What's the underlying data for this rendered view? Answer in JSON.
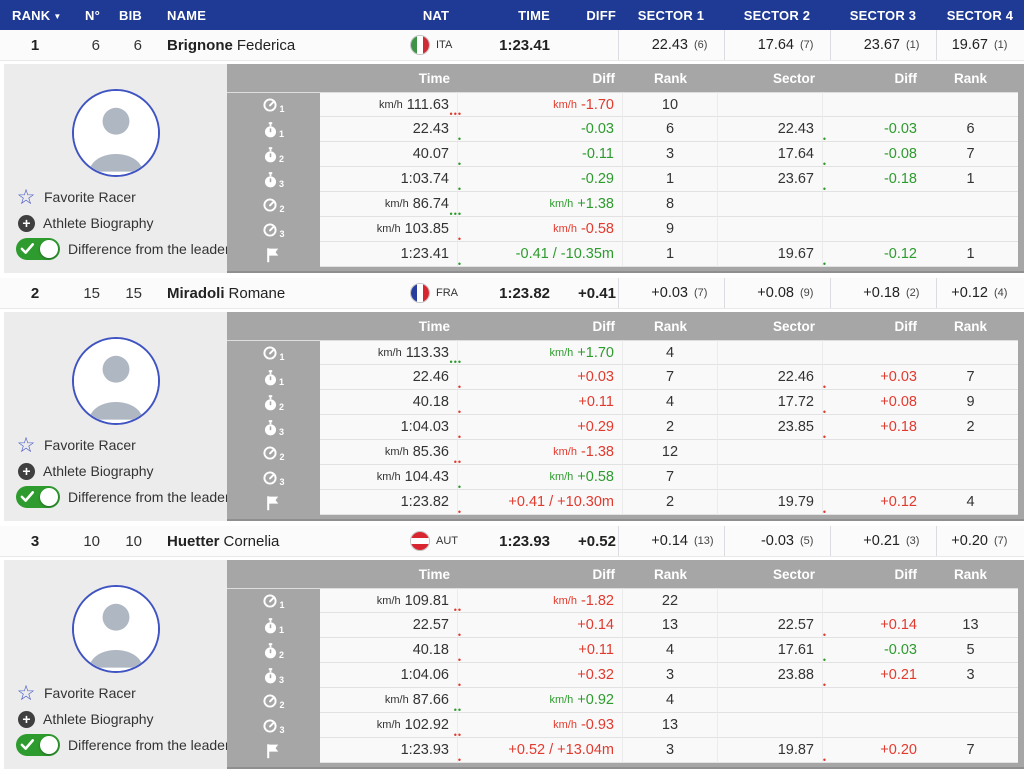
{
  "colors": {
    "green": "#2e9b2e",
    "red": "#e23a2e",
    "header_blue": "#1e3a94"
  },
  "icons": {
    "sort_arrow": "▼",
    "star": "☆",
    "plus": "+"
  },
  "header": {
    "rank": "RANK",
    "num": "N°",
    "bib": "BIB",
    "name": "NAME",
    "nat": "NAT",
    "time": "TIME",
    "diff": "DIFF",
    "sectors": [
      "SECTOR 1",
      "SECTOR 2",
      "SECTOR 3",
      "SECTOR 4"
    ]
  },
  "detail_header": {
    "time": "Time",
    "diff": "Diff",
    "rank": "Rank",
    "sector": "Sector"
  },
  "panel": {
    "favorite_label": "Favorite Racer",
    "biography_label": "Athlete Biography",
    "difference_label": "Difference from the leader"
  },
  "flags": {
    "ITA": {
      "direction": "vertical",
      "colors": [
        "#3d9348",
        "#ffffff",
        "#ce2b37"
      ]
    },
    "FRA": {
      "direction": "vertical",
      "colors": [
        "#283e9c",
        "#ffffff",
        "#d8252f"
      ]
    },
    "AUT": {
      "direction": "horizontal",
      "colors": [
        "#d8252f",
        "#ffffff",
        "#d8252f"
      ]
    }
  },
  "racers": [
    {
      "rank": "1",
      "num": "6",
      "bib": "6",
      "last_name": "Brignone",
      "first_name": "Federica",
      "nat": "ITA",
      "time": "1:23.41",
      "diff": "",
      "sectors": [
        {
          "value": "22.43",
          "rank": "(6)"
        },
        {
          "value": "17.64",
          "rank": "(7)"
        },
        {
          "value": "23.67",
          "rank": "(1)"
        },
        {
          "value": "19.67",
          "rank": "(1)"
        }
      ],
      "rows": [
        {
          "icon": "speedometer-icon",
          "icon_sub": "1",
          "time_prefix": "km/h",
          "time": "111.63",
          "time_dots": "•••",
          "time_dots_color": "#e23a2e",
          "diff_prefix": "km/h",
          "diff": "-1.70",
          "diff_color": "#e23a2e",
          "rank": "10",
          "sector": "",
          "sector_dots": "",
          "sector_dots_color": "",
          "sector_diff": "",
          "sector_diff_color": "",
          "sector_rank": ""
        },
        {
          "icon": "stopwatch-icon",
          "icon_sub": "1",
          "time_prefix": "",
          "time": "22.43",
          "time_dots": "•",
          "time_dots_color": "#2e9b2e",
          "diff_prefix": "",
          "diff": "-0.03",
          "diff_color": "#2e9b2e",
          "rank": "6",
          "sector": "22.43",
          "sector_dots": "•",
          "sector_dots_color": "#2e9b2e",
          "sector_diff": "-0.03",
          "sector_diff_color": "#2e9b2e",
          "sector_rank": "6"
        },
        {
          "icon": "stopwatch-icon",
          "icon_sub": "2",
          "time_prefix": "",
          "time": "40.07",
          "time_dots": "•",
          "time_dots_color": "#2e9b2e",
          "diff_prefix": "",
          "diff": "-0.11",
          "diff_color": "#2e9b2e",
          "rank": "3",
          "sector": "17.64",
          "sector_dots": "•",
          "sector_dots_color": "#2e9b2e",
          "sector_diff": "-0.08",
          "sector_diff_color": "#2e9b2e",
          "sector_rank": "7"
        },
        {
          "icon": "stopwatch-icon",
          "icon_sub": "3",
          "time_prefix": "",
          "time": "1:03.74",
          "time_dots": "•",
          "time_dots_color": "#2e9b2e",
          "diff_prefix": "",
          "diff": "-0.29",
          "diff_color": "#2e9b2e",
          "rank": "1",
          "sector": "23.67",
          "sector_dots": "•",
          "sector_dots_color": "#2e9b2e",
          "sector_diff": "-0.18",
          "sector_diff_color": "#2e9b2e",
          "sector_rank": "1"
        },
        {
          "icon": "speedometer-icon",
          "icon_sub": "2",
          "time_prefix": "km/h",
          "time": "86.74",
          "time_dots": "•••",
          "time_dots_color": "#2e9b2e",
          "diff_prefix": "km/h",
          "diff": "+1.38",
          "diff_color": "#2e9b2e",
          "rank": "8",
          "sector": "",
          "sector_dots": "",
          "sector_dots_color": "",
          "sector_diff": "",
          "sector_diff_color": "",
          "sector_rank": ""
        },
        {
          "icon": "speedometer-icon",
          "icon_sub": "3",
          "time_prefix": "km/h",
          "time": "103.85",
          "time_dots": "•",
          "time_dots_color": "#e23a2e",
          "diff_prefix": "km/h",
          "diff": "-0.58",
          "diff_color": "#e23a2e",
          "rank": "9",
          "sector": "",
          "sector_dots": "",
          "sector_dots_color": "",
          "sector_diff": "",
          "sector_diff_color": "",
          "sector_rank": ""
        },
        {
          "icon": "finish-flag-icon",
          "icon_sub": "",
          "time_prefix": "",
          "time": "1:23.41",
          "time_dots": "•",
          "time_dots_color": "#2e9b2e",
          "diff_prefix": "",
          "diff": "-0.41 / -10.35m",
          "diff_color": "#2e9b2e",
          "rank": "1",
          "sector": "19.67",
          "sector_dots": "•",
          "sector_dots_color": "#2e9b2e",
          "sector_diff": "-0.12",
          "sector_diff_color": "#2e9b2e",
          "sector_rank": "1"
        }
      ]
    },
    {
      "rank": "2",
      "num": "15",
      "bib": "15",
      "last_name": "Miradoli",
      "first_name": "Romane",
      "nat": "FRA",
      "time": "1:23.82",
      "diff": "+0.41",
      "sectors": [
        {
          "value": "+0.03",
          "rank": "(7)"
        },
        {
          "value": "+0.08",
          "rank": "(9)"
        },
        {
          "value": "+0.18",
          "rank": "(2)"
        },
        {
          "value": "+0.12",
          "rank": "(4)"
        }
      ],
      "rows": [
        {
          "icon": "speedometer-icon",
          "icon_sub": "1",
          "time_prefix": "km/h",
          "time": "113.33",
          "time_dots": "•••",
          "time_dots_color": "#2e9b2e",
          "diff_prefix": "km/h",
          "diff": "+1.70",
          "diff_color": "#2e9b2e",
          "rank": "4",
          "sector": "",
          "sector_dots": "",
          "sector_dots_color": "",
          "sector_diff": "",
          "sector_diff_color": "",
          "sector_rank": ""
        },
        {
          "icon": "stopwatch-icon",
          "icon_sub": "1",
          "time_prefix": "",
          "time": "22.46",
          "time_dots": "•",
          "time_dots_color": "#e23a2e",
          "diff_prefix": "",
          "diff": "+0.03",
          "diff_color": "#e23a2e",
          "rank": "7",
          "sector": "22.46",
          "sector_dots": "•",
          "sector_dots_color": "#e23a2e",
          "sector_diff": "+0.03",
          "sector_diff_color": "#e23a2e",
          "sector_rank": "7"
        },
        {
          "icon": "stopwatch-icon",
          "icon_sub": "2",
          "time_prefix": "",
          "time": "40.18",
          "time_dots": "•",
          "time_dots_color": "#e23a2e",
          "diff_prefix": "",
          "diff": "+0.11",
          "diff_color": "#e23a2e",
          "rank": "4",
          "sector": "17.72",
          "sector_dots": "•",
          "sector_dots_color": "#e23a2e",
          "sector_diff": "+0.08",
          "sector_diff_color": "#e23a2e",
          "sector_rank": "9"
        },
        {
          "icon": "stopwatch-icon",
          "icon_sub": "3",
          "time_prefix": "",
          "time": "1:04.03",
          "time_dots": "•",
          "time_dots_color": "#e23a2e",
          "diff_prefix": "",
          "diff": "+0.29",
          "diff_color": "#e23a2e",
          "rank": "2",
          "sector": "23.85",
          "sector_dots": "•",
          "sector_dots_color": "#e23a2e",
          "sector_diff": "+0.18",
          "sector_diff_color": "#e23a2e",
          "sector_rank": "2"
        },
        {
          "icon": "speedometer-icon",
          "icon_sub": "2",
          "time_prefix": "km/h",
          "time": "85.36",
          "time_dots": "••",
          "time_dots_color": "#e23a2e",
          "diff_prefix": "km/h",
          "diff": "-1.38",
          "diff_color": "#e23a2e",
          "rank": "12",
          "sector": "",
          "sector_dots": "",
          "sector_dots_color": "",
          "sector_diff": "",
          "sector_diff_color": "",
          "sector_rank": ""
        },
        {
          "icon": "speedometer-icon",
          "icon_sub": "3",
          "time_prefix": "km/h",
          "time": "104.43",
          "time_dots": "•",
          "time_dots_color": "#2e9b2e",
          "diff_prefix": "km/h",
          "diff": "+0.58",
          "diff_color": "#2e9b2e",
          "rank": "7",
          "sector": "",
          "sector_dots": "",
          "sector_dots_color": "",
          "sector_diff": "",
          "sector_diff_color": "",
          "sector_rank": ""
        },
        {
          "icon": "finish-flag-icon",
          "icon_sub": "",
          "time_prefix": "",
          "time": "1:23.82",
          "time_dots": "•",
          "time_dots_color": "#e23a2e",
          "diff_prefix": "",
          "diff": "+0.41 / +10.30m",
          "diff_color": "#e23a2e",
          "rank": "2",
          "sector": "19.79",
          "sector_dots": "•",
          "sector_dots_color": "#e23a2e",
          "sector_diff": "+0.12",
          "sector_diff_color": "#e23a2e",
          "sector_rank": "4"
        }
      ]
    },
    {
      "rank": "3",
      "num": "10",
      "bib": "10",
      "last_name": "Huetter",
      "first_name": "Cornelia",
      "nat": "AUT",
      "time": "1:23.93",
      "diff": "+0.52",
      "sectors": [
        {
          "value": "+0.14",
          "rank": "(13)"
        },
        {
          "value": "-0.03",
          "rank": "(5)"
        },
        {
          "value": "+0.21",
          "rank": "(3)"
        },
        {
          "value": "+0.20",
          "rank": "(7)"
        }
      ],
      "rows": [
        {
          "icon": "speedometer-icon",
          "icon_sub": "1",
          "time_prefix": "km/h",
          "time": "109.81",
          "time_dots": "••",
          "time_dots_color": "#e23a2e",
          "diff_prefix": "km/h",
          "diff": "-1.82",
          "diff_color": "#e23a2e",
          "rank": "22",
          "sector": "",
          "sector_dots": "",
          "sector_dots_color": "",
          "sector_diff": "",
          "sector_diff_color": "",
          "sector_rank": ""
        },
        {
          "icon": "stopwatch-icon",
          "icon_sub": "1",
          "time_prefix": "",
          "time": "22.57",
          "time_dots": "•",
          "time_dots_color": "#e23a2e",
          "diff_prefix": "",
          "diff": "+0.14",
          "diff_color": "#e23a2e",
          "rank": "13",
          "sector": "22.57",
          "sector_dots": "•",
          "sector_dots_color": "#e23a2e",
          "sector_diff": "+0.14",
          "sector_diff_color": "#e23a2e",
          "sector_rank": "13"
        },
        {
          "icon": "stopwatch-icon",
          "icon_sub": "2",
          "time_prefix": "",
          "time": "40.18",
          "time_dots": "•",
          "time_dots_color": "#e23a2e",
          "diff_prefix": "",
          "diff": "+0.11",
          "diff_color": "#e23a2e",
          "rank": "4",
          "sector": "17.61",
          "sector_dots": "•",
          "sector_dots_color": "#2e9b2e",
          "sector_diff": "-0.03",
          "sector_diff_color": "#2e9b2e",
          "sector_rank": "5"
        },
        {
          "icon": "stopwatch-icon",
          "icon_sub": "3",
          "time_prefix": "",
          "time": "1:04.06",
          "time_dots": "•",
          "time_dots_color": "#e23a2e",
          "diff_prefix": "",
          "diff": "+0.32",
          "diff_color": "#e23a2e",
          "rank": "3",
          "sector": "23.88",
          "sector_dots": "•",
          "sector_dots_color": "#e23a2e",
          "sector_diff": "+0.21",
          "sector_diff_color": "#e23a2e",
          "sector_rank": "3"
        },
        {
          "icon": "speedometer-icon",
          "icon_sub": "2",
          "time_prefix": "km/h",
          "time": "87.66",
          "time_dots": "••",
          "time_dots_color": "#2e9b2e",
          "diff_prefix": "km/h",
          "diff": "+0.92",
          "diff_color": "#2e9b2e",
          "rank": "4",
          "sector": "",
          "sector_dots": "",
          "sector_dots_color": "",
          "sector_diff": "",
          "sector_diff_color": "",
          "sector_rank": ""
        },
        {
          "icon": "speedometer-icon",
          "icon_sub": "3",
          "time_prefix": "km/h",
          "time": "102.92",
          "time_dots": "••",
          "time_dots_color": "#e23a2e",
          "diff_prefix": "km/h",
          "diff": "-0.93",
          "diff_color": "#e23a2e",
          "rank": "13",
          "sector": "",
          "sector_dots": "",
          "sector_dots_color": "",
          "sector_diff": "",
          "sector_diff_color": "",
          "sector_rank": ""
        },
        {
          "icon": "finish-flag-icon",
          "icon_sub": "",
          "time_prefix": "",
          "time": "1:23.93",
          "time_dots": "•",
          "time_dots_color": "#e23a2e",
          "diff_prefix": "",
          "diff": "+0.52 / +13.04m",
          "diff_color": "#e23a2e",
          "rank": "3",
          "sector": "19.87",
          "sector_dots": "•",
          "sector_dots_color": "#e23a2e",
          "sector_diff": "+0.20",
          "sector_diff_color": "#e23a2e",
          "sector_rank": "7"
        }
      ]
    }
  ]
}
